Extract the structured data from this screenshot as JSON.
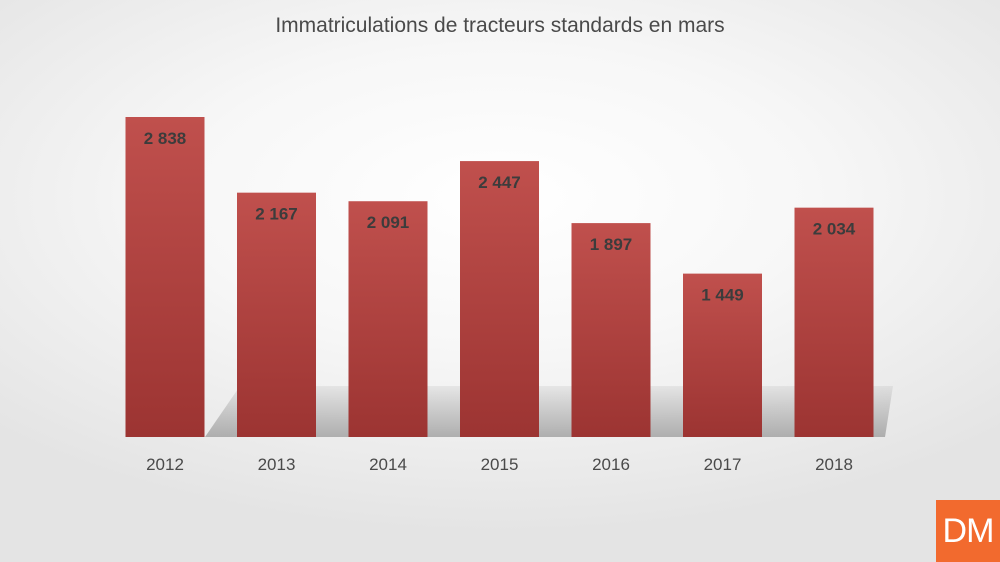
{
  "chart_data": {
    "type": "bar",
    "title": "Immatriculations de tracteurs standards en mars",
    "categories": [
      "2012",
      "2013",
      "2014",
      "2015",
      "2016",
      "2017",
      "2018"
    ],
    "values": [
      2838,
      2167,
      2091,
      2447,
      1897,
      1449,
      2034
    ],
    "data_labels": [
      "2 838",
      "2 167",
      "2 091",
      "2 447",
      "1 897",
      "1 449",
      "2 034"
    ],
    "ylim": [
      0,
      2838
    ],
    "grid": false,
    "legend": "none",
    "bar_color": "#c0504d",
    "bar_color_dark": "#9c3432"
  },
  "logo": {
    "text": "DM",
    "color": "#f26a2e"
  }
}
